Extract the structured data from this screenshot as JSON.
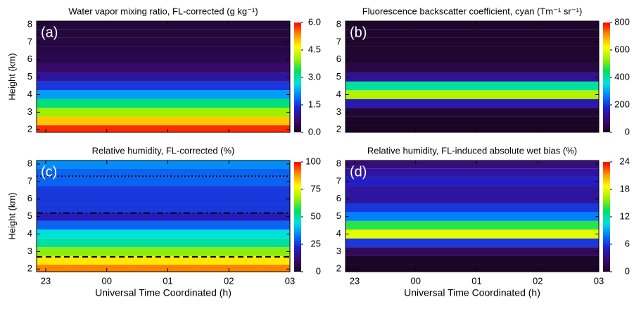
{
  "chart_data": [
    {
      "type": "heatmap",
      "title": "Water vapor mixing ratio, FL-corrected (g kg⁻¹)",
      "panel_label": "(a)",
      "ylabel": "Height (km)",
      "xlim": [
        22.85,
        27
      ],
      "xticks": [
        23,
        24,
        25,
        26,
        27
      ],
      "ylim": [
        1.85,
        8.2
      ],
      "yticks": [
        2,
        3,
        4,
        5,
        6,
        7,
        8
      ],
      "y": [
        2,
        2.5,
        3,
        3.5,
        4,
        4.5,
        5,
        5.5,
        6,
        6.5,
        7,
        7.5,
        8
      ],
      "z": [
        5.8,
        5.0,
        4.0,
        3.2,
        2.2,
        1.5,
        1.0,
        0.6,
        0.4,
        0.3,
        0.25,
        0.2,
        0.2
      ],
      "zlim": [
        0,
        6
      ],
      "zticks": [
        {
          "value": 0,
          "label": "0.0"
        },
        1.5,
        {
          "value": 3,
          "label": "3.0"
        },
        4.5,
        {
          "value": 6,
          "label": "6.0"
        }
      ],
      "colormap": [
        "#1a0526",
        "#3a0a6e",
        "#2020d0",
        "#0080ff",
        "#00e0e0",
        "#00e060",
        "#a0f000",
        "#ffff00",
        "#ff9000",
        "#ff0000"
      ]
    },
    {
      "type": "heatmap",
      "title": "Fluorescence backscatter coefficient, cyan (Tm⁻¹ sr⁻¹)",
      "panel_label": "(b)",
      "xlim": [
        22.85,
        27
      ],
      "xticks": [
        23,
        24,
        25,
        26,
        27
      ],
      "ylim": [
        1.85,
        8.2
      ],
      "yticks": [
        2,
        3,
        4,
        5,
        6,
        7,
        8
      ],
      "y": [
        2,
        2.5,
        3,
        3.5,
        4,
        4.5,
        5,
        5.5,
        6,
        6.5,
        7,
        7.5,
        8
      ],
      "z": [
        0,
        0,
        20,
        150,
        550,
        400,
        120,
        40,
        20,
        10,
        10,
        10,
        10
      ],
      "zlim": [
        0,
        800
      ],
      "zticks": [
        0,
        200,
        400,
        600,
        800
      ],
      "colormap": [
        "#1a0526",
        "#3a0a6e",
        "#2020d0",
        "#0080ff",
        "#00e0e0",
        "#00e060",
        "#a0f000",
        "#ffff00",
        "#ff9000",
        "#ff0000"
      ]
    },
    {
      "type": "heatmap",
      "title": "Relative humidity, FL-corrected (%)",
      "panel_label": "(c)",
      "ylabel": "Height (km)",
      "xlabel": "Universal Time Coordinated (h)",
      "xlim": [
        22.85,
        27
      ],
      "xticks": [
        23,
        {
          "value": 24,
          "label": "00"
        },
        {
          "value": 25,
          "label": "01"
        },
        {
          "value": 26,
          "label": "02"
        },
        {
          "value": 27,
          "label": "03"
        }
      ],
      "ylim": [
        1.85,
        8.2
      ],
      "yticks": [
        2,
        3,
        4,
        5,
        6,
        7,
        8
      ],
      "y": [
        2,
        2.5,
        3,
        3.5,
        4,
        4.5,
        5,
        5.5,
        6,
        6.5,
        7,
        7.5,
        8
      ],
      "z": [
        90,
        80,
        65,
        50,
        45,
        30,
        20,
        25,
        25,
        25,
        30,
        30,
        35
      ],
      "zlim": [
        0,
        100
      ],
      "zticks": [
        0,
        25,
        50,
        75,
        100
      ],
      "hlines": [
        {
          "value": 7.3,
          "style": "dotted"
        },
        {
          "value": 5.2,
          "style": "dashdot"
        },
        {
          "value": 2.7,
          "style": "dashed"
        }
      ],
      "colormap": [
        "#1a0526",
        "#3a0a6e",
        "#2020d0",
        "#0080ff",
        "#00e0e0",
        "#00e060",
        "#a0f000",
        "#ffff00",
        "#ff9000",
        "#ff0000"
      ]
    },
    {
      "type": "heatmap",
      "title": "Relative humidity, FL-induced absolute wet bias (%)",
      "panel_label": "(d)",
      "xlabel": "Universal Time Coordinated (h)",
      "xlim": [
        22.85,
        27
      ],
      "xticks": [
        23,
        {
          "value": 24,
          "label": "00"
        },
        {
          "value": 25,
          "label": "01"
        },
        {
          "value": 26,
          "label": "02"
        },
        {
          "value": 27,
          "label": "03"
        }
      ],
      "ylim": [
        1.85,
        8.2
      ],
      "yticks": [
        2,
        3,
        4,
        5,
        6,
        7,
        8
      ],
      "y": [
        2,
        2.5,
        3,
        3.5,
        4,
        4.5,
        5,
        5.5,
        6,
        6.5,
        7,
        7.5,
        8
      ],
      "z": [
        0,
        0,
        2,
        6,
        18,
        14,
        8,
        6,
        4,
        4,
        5,
        4,
        3
      ],
      "zlim": [
        0,
        24
      ],
      "zticks": [
        0,
        6,
        12,
        18,
        24
      ],
      "colormap": [
        "#1a0526",
        "#3a0a6e",
        "#2020d0",
        "#0080ff",
        "#00e0e0",
        "#00e060",
        "#a0f000",
        "#ffff00",
        "#ff9000",
        "#ff0000"
      ]
    }
  ]
}
